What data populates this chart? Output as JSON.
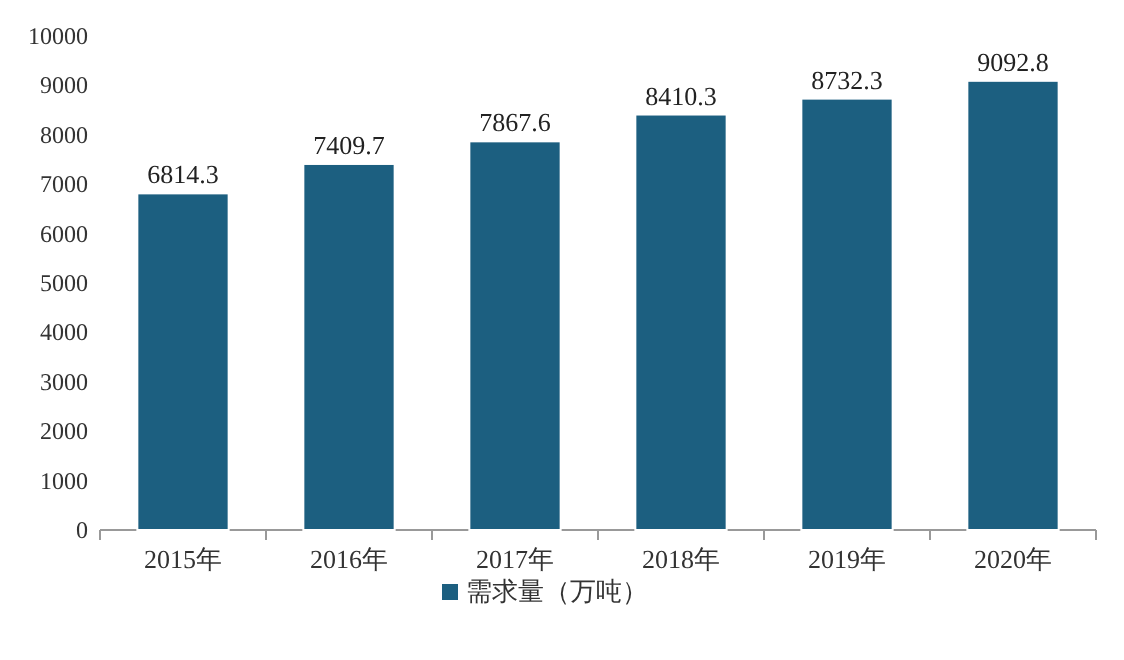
{
  "chart_data": {
    "type": "bar",
    "categories": [
      "2015年",
      "2016年",
      "2017年",
      "2018年",
      "2019年",
      "2020年"
    ],
    "series": [
      {
        "name": "需求量（万吨）",
        "color": "#1c5f80",
        "values": [
          6814.3,
          7409.7,
          7867.6,
          8410.3,
          8732.3,
          9092.8
        ]
      }
    ],
    "ylim": [
      0,
      10000
    ],
    "yticks": [
      0,
      1000,
      2000,
      3000,
      4000,
      5000,
      6000,
      7000,
      8000,
      9000,
      10000
    ],
    "data_labels": true,
    "legend": "bottom",
    "grid": false
  }
}
